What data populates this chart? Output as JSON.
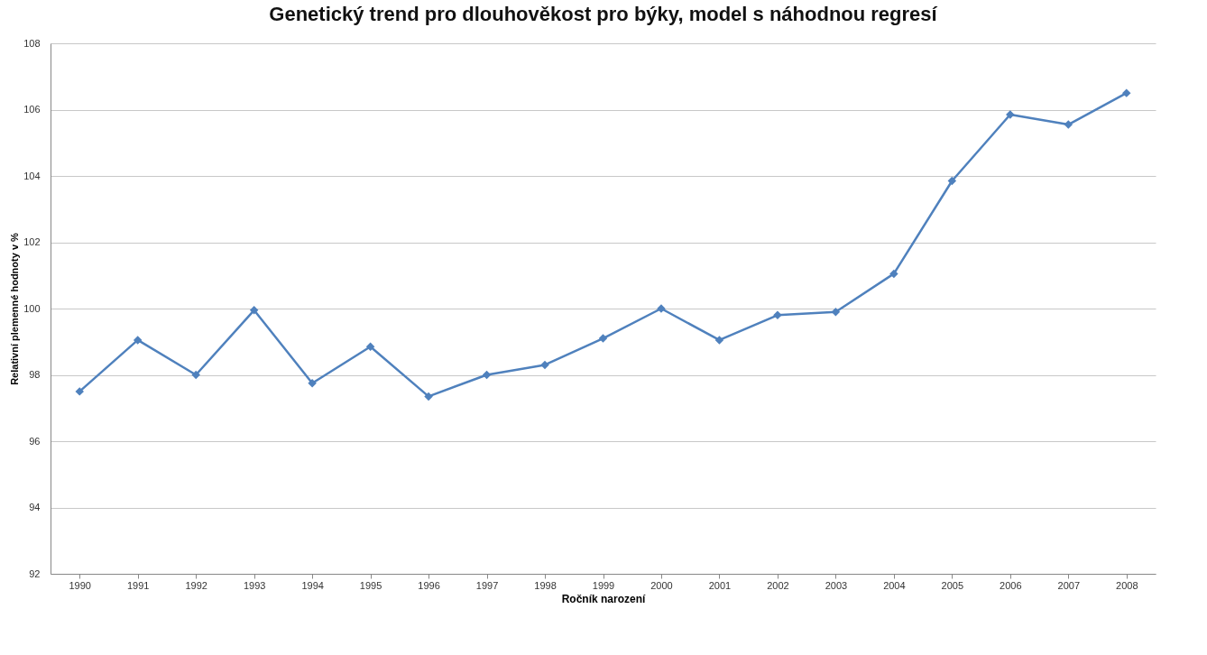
{
  "chart_data": {
    "type": "line",
    "title": "Genetický trend pro dlouhověkost pro býky, model s náhodnou regresí",
    "xlabel": "Ročník narození",
    "ylabel": "Relativní plemenné hodnoty v %",
    "categories": [
      "1990",
      "1991",
      "1992",
      "1993",
      "1994",
      "1995",
      "1996",
      "1997",
      "1998",
      "1999",
      "2000",
      "2001",
      "2002",
      "2003",
      "2004",
      "2005",
      "2006",
      "2007",
      "2008"
    ],
    "series": [
      {
        "color": "#4f81bd",
        "values": [
          97.5,
          99.05,
          98.0,
          99.95,
          97.75,
          98.85,
          97.35,
          98.0,
          98.3,
          99.1,
          100.0,
          99.05,
          99.8,
          99.9,
          101.05,
          103.85,
          105.85,
          105.55,
          106.5
        ]
      }
    ],
    "ylim": [
      92,
      108
    ],
    "yticks": [
      92,
      94,
      96,
      98,
      100,
      102,
      104,
      106,
      108
    ],
    "grid": "y",
    "marker": "diamond",
    "line_style": "solid"
  }
}
